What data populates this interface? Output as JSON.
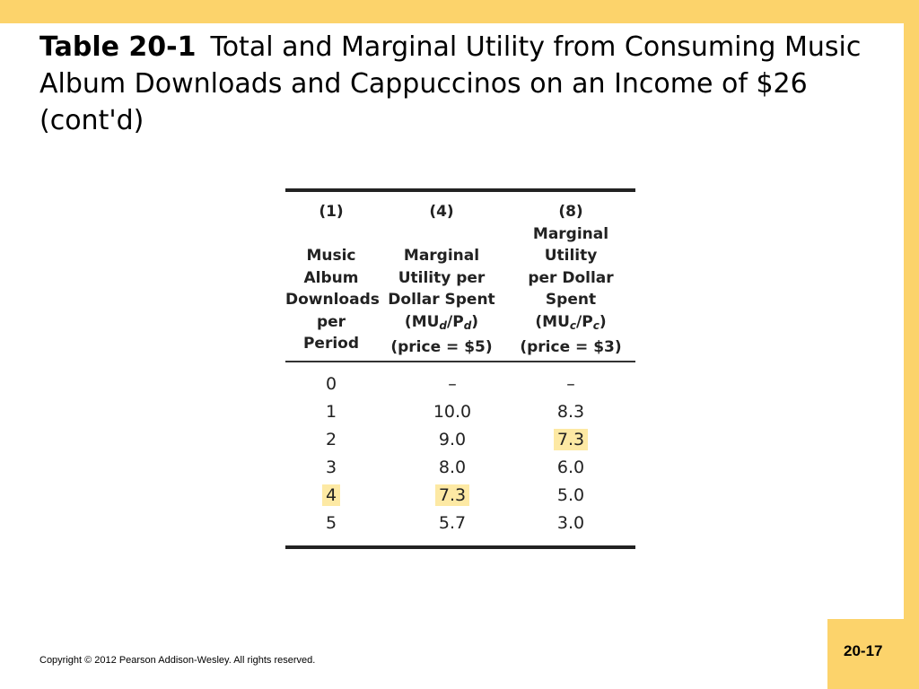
{
  "title": {
    "label": "Table 20-1",
    "text": "Total and Marginal Utility from Consuming Music Album Downloads and Cappuccinos on an Income of $26 (cont'd)"
  },
  "table": {
    "columns": [
      {
        "num": "(1)",
        "lines": [
          "Music",
          "Album",
          "Downloads",
          "per",
          "Period"
        ]
      },
      {
        "num": "(4)",
        "lines": [
          "Marginal",
          "Utility per",
          "Dollar Spent"
        ],
        "formula": {
          "open": "(MU",
          "sub1": "d",
          "mid": "/P",
          "sub2": "d",
          "close": ")"
        },
        "price": "(price = $5)"
      },
      {
        "num": "(8)",
        "lines": [
          "Marginal",
          "Utility",
          "per Dollar",
          "Spent"
        ],
        "formula": {
          "open": "(MU",
          "sub1": "c",
          "mid": "/P",
          "sub2": "c",
          "close": ")"
        },
        "price": "(price = $3)"
      }
    ],
    "rows": [
      {
        "downloads": "0",
        "mud": "–",
        "muc": "–"
      },
      {
        "downloads": "1",
        "mud": "10.0",
        "muc": "8.3"
      },
      {
        "downloads": "2",
        "mud": "9.0",
        "muc": "7.3"
      },
      {
        "downloads": "3",
        "mud": "8.0",
        "muc": "6.0"
      },
      {
        "downloads": "4",
        "mud": "7.3",
        "muc": "5.0"
      },
      {
        "downloads": "5",
        "mud": "5.7",
        "muc": "3.0"
      }
    ],
    "highlight_color": "#fde9a4"
  },
  "footer": {
    "copyright": "Copyright © 2012 Pearson Addison-Wesley. All rights reserved.",
    "page": "20-17"
  },
  "colors": {
    "frame": "#fcd36b",
    "background": "#ffffff"
  }
}
